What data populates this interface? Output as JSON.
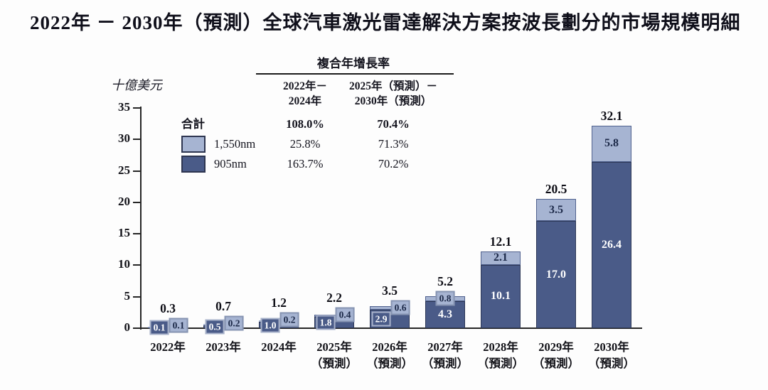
{
  "cagr_table": {
    "header": "複合年增長率",
    "columns": [
      {
        "line1": "2022年－",
        "line2": "2024年"
      },
      {
        "line1": "2025年（預測）－",
        "line2": "2030年（預測）"
      }
    ],
    "rows": [
      {
        "label": "合計",
        "swatch": "",
        "bold": true,
        "values": [
          "108.0%",
          "70.4%"
        ]
      },
      {
        "label": "1,550nm",
        "swatch": "#a6b4d2",
        "bold": false,
        "values": [
          "25.8%",
          "71.3%"
        ]
      },
      {
        "label": "905nm",
        "swatch": "#4a5b88",
        "bold": false,
        "values": [
          "163.7%",
          "70.2%"
        ]
      }
    ]
  },
  "chart_data": {
    "type": "bar",
    "stacked": true,
    "title": "2022年 － 2030年（預測）全球汽車激光雷達解決方案按波長劃分的市場規模明細",
    "unit_label": "十億美元",
    "xlabel": "",
    "ylabel": "十億美元",
    "ylim": [
      0,
      35
    ],
    "y_ticks": [
      0,
      5,
      10,
      15,
      20,
      25,
      30,
      35
    ],
    "grid": false,
    "legend_position": "upper-left",
    "categories": [
      "2022年",
      "2023年",
      "2024年",
      "2025年（預測）",
      "2026年（預測）",
      "2027年（預測）",
      "2028年（預測）",
      "2029年（預測）",
      "2030年（預測）"
    ],
    "series": [
      {
        "name": "905nm",
        "color": "#4a5b88",
        "text_color": "#ffffff",
        "values": [
          "0.1",
          "0.5",
          "1.0",
          "1.8",
          "2.9",
          "4.3",
          "10.1",
          "17.0",
          "26.4"
        ]
      },
      {
        "name": "1,550nm",
        "color": "#a6b4d2",
        "text_color": "#1c2948",
        "values": [
          "0.1",
          "0.2",
          "0.2",
          "0.4",
          "0.6",
          "0.8",
          "2.1",
          "3.5",
          "5.8"
        ]
      }
    ],
    "totals": [
      "0.3",
      "0.7",
      "1.2",
      "2.2",
      "3.5",
      "5.2",
      "12.1",
      "20.5",
      "32.1"
    ]
  }
}
